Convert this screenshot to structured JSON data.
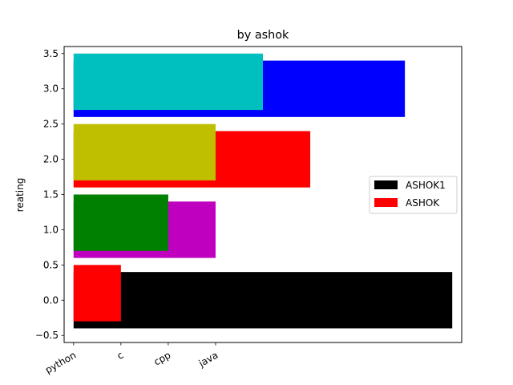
{
  "chart_data": {
    "type": "bar",
    "orientation": "horizontal",
    "title": "by ashok",
    "ylabel": "reating",
    "xlabel": "",
    "x_ticks": [
      {
        "label": "python",
        "value": 0
      },
      {
        "label": "c",
        "value": 1
      },
      {
        "label": "cpp",
        "value": 2
      },
      {
        "label": "java",
        "value": 3
      }
    ],
    "y_ticks": [
      -0.5,
      0.0,
      0.5,
      1.0,
      1.5,
      2.0,
      2.5,
      3.0,
      3.5
    ],
    "y_tick_labels": [
      "−0.5",
      "0.0",
      "0.5",
      "1.0",
      "1.5",
      "2.0",
      "2.5",
      "3.0",
      "3.5"
    ],
    "xlim": [
      -0.2,
      8.2
    ],
    "ylim": [
      -0.6,
      3.6
    ],
    "legend_position": "center-right",
    "series": [
      {
        "name": "ASHOK1",
        "legend_color": "#000000",
        "bar_height": 0.8,
        "bars": [
          {
            "y": 0,
            "width": 8.0,
            "color": "#000000"
          },
          {
            "y": 1,
            "width": 3.0,
            "color": "#bf00bf"
          },
          {
            "y": 2,
            "width": 5.0,
            "color": "#ff0000"
          },
          {
            "y": 3,
            "width": 7.0,
            "color": "#0000ff"
          }
        ]
      },
      {
        "name": "ASHOK",
        "legend_color": "#ff0000",
        "bar_height": 0.8,
        "bars": [
          {
            "y": 0.1,
            "width": 1.0,
            "color": "#ff0000"
          },
          {
            "y": 1.1,
            "width": 2.0,
            "color": "#008000"
          },
          {
            "y": 2.1,
            "width": 3.0,
            "color": "#bfbf00"
          },
          {
            "y": 3.1,
            "width": 4.0,
            "color": "#00bfbf"
          }
        ]
      }
    ]
  }
}
